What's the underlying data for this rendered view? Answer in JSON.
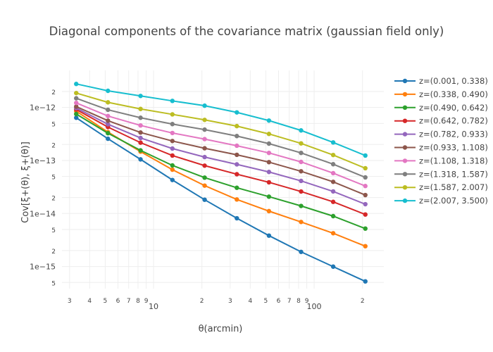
{
  "chart_data": {
    "type": "line",
    "title": "Diagonal components of the covariance matrix (gaussian field only)",
    "xlabel": "θ(arcmin)",
    "ylabel": "Cov[ξ+(θ), ξ+(θ)]",
    "xscale": "log",
    "yscale": "log",
    "xlim": [
      2.69,
      271.6
    ],
    "ylim": [
      3.83e-16,
      5e-12
    ],
    "grid": true,
    "legend_position": "right",
    "x_ticks": [
      {
        "value": 3,
        "label": "3",
        "major": false
      },
      {
        "value": 4,
        "label": "4",
        "major": false
      },
      {
        "value": 5,
        "label": "5",
        "major": false
      },
      {
        "value": 6,
        "label": "6",
        "major": false
      },
      {
        "value": 7,
        "label": "7",
        "major": false
      },
      {
        "value": 8,
        "label": "8",
        "major": false
      },
      {
        "value": 9,
        "label": "9",
        "major": false
      },
      {
        "value": 10,
        "label": "10",
        "major": true
      },
      {
        "value": 20,
        "label": "2",
        "major": false
      },
      {
        "value": 30,
        "label": "3",
        "major": false
      },
      {
        "value": 40,
        "label": "4",
        "major": false
      },
      {
        "value": 50,
        "label": "5",
        "major": false
      },
      {
        "value": 60,
        "label": "6",
        "major": false
      },
      {
        "value": 70,
        "label": "7",
        "major": false
      },
      {
        "value": 80,
        "label": "8",
        "major": false
      },
      {
        "value": 90,
        "label": "9",
        "major": false
      },
      {
        "value": 100,
        "label": "100",
        "major": true
      },
      {
        "value": 200,
        "label": "2",
        "major": false
      }
    ],
    "y_ticks": [
      {
        "value": 2e-12,
        "label": "2"
      },
      {
        "value": 1e-12,
        "label": "1e−12"
      },
      {
        "value": 5e-13,
        "label": "5"
      },
      {
        "value": 2e-13,
        "label": "2"
      },
      {
        "value": 1e-13,
        "label": "1e−13"
      },
      {
        "value": 5e-14,
        "label": "5"
      },
      {
        "value": 2e-14,
        "label": "2"
      },
      {
        "value": 1e-14,
        "label": "1e−14"
      },
      {
        "value": 5e-15,
        "label": "5"
      },
      {
        "value": 2e-15,
        "label": "2"
      },
      {
        "value": 1e-15,
        "label": "1e−15"
      },
      {
        "value": 5e-16,
        "label": "5"
      }
    ],
    "x": [
      3.3,
      5.2,
      8.3,
      13.1,
      20.8,
      33.0,
      52.3,
      82.9,
      131.4,
      208.3
    ],
    "series": [
      {
        "name": "z=(0.001, 0.338)",
        "color": "#1f77b4",
        "values": [
          6.4e-13,
          2.57e-13,
          1.05e-13,
          4.29e-14,
          1.82e-14,
          8.14e-15,
          3.83e-15,
          1.89e-15,
          9.96e-16,
          5.25e-16
        ]
      },
      {
        "name": "z=(0.338, 0.490)",
        "color": "#ff7f0e",
        "values": [
          8.5e-13,
          3.43e-13,
          1.47e-13,
          6.71e-14,
          3.36e-14,
          1.84e-14,
          1.11e-14,
          6.93e-15,
          4.25e-15,
          2.42e-15
        ]
      },
      {
        "name": "z=(0.490, 0.642)",
        "color": "#2ca02c",
        "values": [
          7.52e-13,
          3.27e-13,
          1.55e-13,
          8.07e-14,
          4.75e-14,
          3.06e-14,
          2.08e-14,
          1.39e-14,
          8.93e-15,
          5.2e-15
        ]
      },
      {
        "name": "z=(0.642, 0.782)",
        "color": "#d62728",
        "values": [
          9.18e-13,
          4.27e-13,
          2.17e-13,
          1.24e-13,
          8e-14,
          5.51e-14,
          3.88e-14,
          2.6e-14,
          1.66e-14,
          9.58e-15
        ]
      },
      {
        "name": "z=(0.782, 0.933)",
        "color": "#9467bd",
        "values": [
          9.76e-13,
          4.83e-13,
          2.66e-13,
          1.68e-13,
          1.16e-13,
          8.45e-14,
          6.08e-14,
          4.12e-14,
          2.61e-14,
          1.5e-14
        ]
      },
      {
        "name": "z=(0.933, 1.108)",
        "color": "#8c564b",
        "values": [
          1.04e-12,
          5.63e-13,
          3.37e-13,
          2.33e-13,
          1.7e-13,
          1.28e-13,
          9.31e-14,
          6.26e-14,
          3.96e-14,
          2.23e-14
        ]
      },
      {
        "name": "z=(1.108, 1.318)",
        "color": "#e377c2",
        "values": [
          1.22e-12,
          6.9e-13,
          4.58e-13,
          3.3e-13,
          2.53e-13,
          1.9e-13,
          1.39e-13,
          9.4e-14,
          5.77e-14,
          3.3e-14
        ]
      },
      {
        "name": "z=(1.318, 1.587)",
        "color": "#7f7f7f",
        "values": [
          1.49e-12,
          9.04e-13,
          6.4e-13,
          4.86e-13,
          3.82e-13,
          2.89e-13,
          2.08e-13,
          1.39e-13,
          8.51e-14,
          4.8e-14
        ]
      },
      {
        "name": "z=(1.587, 2.007)",
        "color": "#bcbd22",
        "values": [
          1.87e-12,
          1.25e-12,
          9.38e-13,
          7.41e-13,
          5.83e-13,
          4.45e-13,
          3.17e-13,
          2.1e-13,
          1.27e-13,
          7.14e-14
        ]
      },
      {
        "name": "z=(2.007, 3.500)",
        "color": "#17becf",
        "values": [
          2.78e-12,
          2.06e-12,
          1.65e-12,
          1.33e-12,
          1.08e-12,
          8.07e-13,
          5.66e-13,
          3.69e-13,
          2.19e-13,
          1.24e-13
        ]
      }
    ]
  }
}
